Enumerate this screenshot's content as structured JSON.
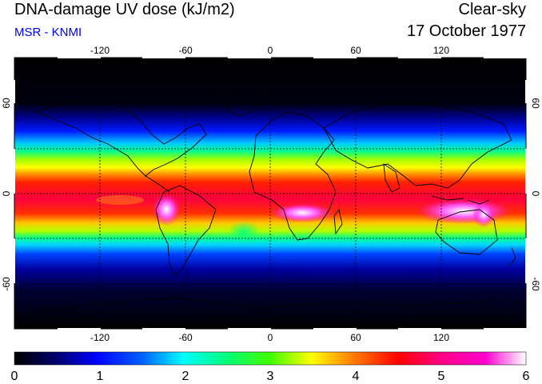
{
  "header": {
    "title": "DNA-damage UV dose (kJ/m2)",
    "subtitle": "MSR - KNMI",
    "condition": "Clear-sky",
    "date": "17 October 1977"
  },
  "map": {
    "lon_range": [
      -180,
      180
    ],
    "lat_range": [
      -90,
      90
    ],
    "grid_lons": [
      -120,
      -60,
      0,
      60,
      120
    ],
    "grid_lats": [
      -60,
      -30,
      0,
      30,
      60
    ],
    "lon_labels": [
      "-120",
      "-60",
      "0",
      "60",
      "120"
    ],
    "lat_labels": [
      "-60",
      "0",
      "60"
    ]
  },
  "colorbar": {
    "ticks": [
      "0",
      "1",
      "2",
      "3",
      "4",
      "5",
      "6"
    ],
    "range": [
      0,
      6
    ]
  },
  "colors": {
    "title_color": "#000000",
    "subtitle_color": "#0000ee",
    "scale": [
      "#000000",
      "#00008a",
      "#0000ff",
      "#00c8ff",
      "#00ff90",
      "#70ff00",
      "#ffff00",
      "#ff9000",
      "#ff0000",
      "#ff0080",
      "#ff00cc",
      "#ffffff"
    ]
  }
}
